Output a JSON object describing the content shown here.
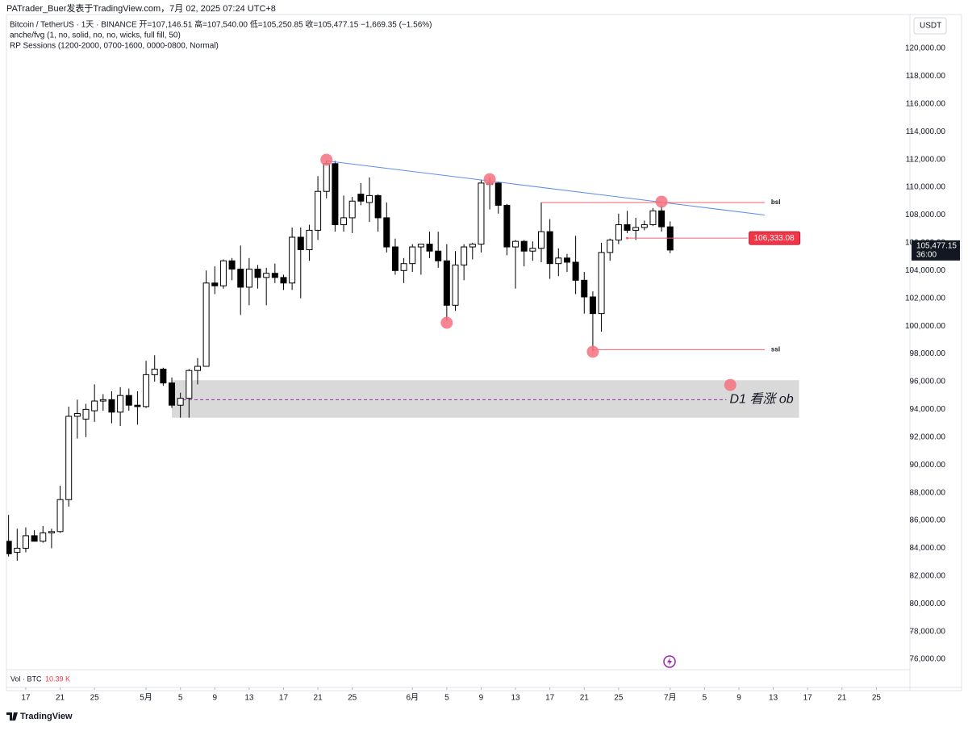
{
  "header": {
    "attribution": "PATrader_Buer发表于TradingView.com，7月 02, 2025 07:24 UTC+8",
    "symbol_line": "Bitcoin / TetherUS · 1天 · BINANCE  开=107,146.51 高=107,540.00 低=105,250.85 收=105,477.15 −1,669.35 (−1.56%)",
    "indicator_1": "anche/fvg (1, no, solid, no, no, wicks, full fill, 50)",
    "indicator_2": "RP Sessions (1200-2000, 0700-1600, 0000-0800, Normal)",
    "currency": "USDT",
    "volume_label": "Vol · BTC",
    "volume_value": "10.39 K",
    "brand": "TradingView"
  },
  "chart_data": {
    "type": "candlestick",
    "x": [
      "2025-04-15",
      "2025-04-16",
      "2025-04-17",
      "2025-04-18",
      "2025-04-19",
      "2025-04-20",
      "2025-04-21",
      "2025-04-22",
      "2025-04-23",
      "2025-04-24",
      "2025-04-25",
      "2025-04-26",
      "2025-04-27",
      "2025-04-28",
      "2025-04-29",
      "2025-04-30",
      "2025-05-01",
      "2025-05-02",
      "2025-05-03",
      "2025-05-04",
      "2025-05-05",
      "2025-05-06",
      "2025-05-07",
      "2025-05-08",
      "2025-05-09",
      "2025-05-10",
      "2025-05-11",
      "2025-05-12",
      "2025-05-13",
      "2025-05-14",
      "2025-05-15",
      "2025-05-16",
      "2025-05-17",
      "2025-05-18",
      "2025-05-19",
      "2025-05-20",
      "2025-05-21",
      "2025-05-22",
      "2025-05-23",
      "2025-05-24",
      "2025-05-25",
      "2025-05-26",
      "2025-05-27",
      "2025-05-28",
      "2025-05-29",
      "2025-05-30",
      "2025-05-31",
      "2025-06-01",
      "2025-06-02",
      "2025-06-03",
      "2025-06-04",
      "2025-06-05",
      "2025-06-06",
      "2025-06-07",
      "2025-06-08",
      "2025-06-09",
      "2025-06-10",
      "2025-06-11",
      "2025-06-12",
      "2025-06-13",
      "2025-06-14",
      "2025-06-15",
      "2025-06-16",
      "2025-06-17",
      "2025-06-18",
      "2025-06-19",
      "2025-06-20",
      "2025-06-21",
      "2025-06-22",
      "2025-06-23",
      "2025-06-24",
      "2025-06-25",
      "2025-06-26",
      "2025-06-27",
      "2025-06-28",
      "2025-06-29",
      "2025-06-30",
      "2025-07-01"
    ],
    "open": [
      84500,
      83700,
      84000,
      84900,
      84500,
      85100,
      85200,
      87500,
      93500,
      93300,
      93900,
      94600,
      94700,
      93800,
      95000,
      94300,
      94200,
      96500,
      96900,
      95900,
      94300,
      94800,
      96800,
      97100,
      103100,
      102900,
      104700,
      104100,
      102800,
      104100,
      103500,
      103800,
      103500,
      103100,
      106400,
      105500,
      106900,
      109700,
      111700,
      107300,
      107800,
      109500,
      108900,
      109400,
      107800,
      105700,
      104000,
      104500,
      105700,
      105900,
      105400,
      104700,
      101500,
      104400,
      105700,
      105900,
      110200,
      110300,
      108700,
      105700,
      106100,
      105400,
      105600,
      106800,
      104500,
      104900,
      104600,
      103300,
      102100,
      100900,
      105300,
      106200,
      107300,
      106900,
      107100,
      107300,
      108300,
      107146.51
    ],
    "high": [
      86400,
      85400,
      85500,
      85300,
      85600,
      85400,
      88500,
      94200,
      94700,
      94400,
      95800,
      95100,
      95300,
      95600,
      95500,
      95300,
      97500,
      97900,
      97000,
      96300,
      95200,
      96900,
      97700,
      104000,
      104300,
      104800,
      104900,
      105800,
      104900,
      104400,
      104200,
      104500,
      103700,
      107100,
      107100,
      107300,
      110800,
      111900,
      111900,
      109400,
      109300,
      110300,
      110700,
      109500,
      108900,
      106300,
      104900,
      105900,
      105900,
      106800,
      106800,
      105900,
      105400,
      105900,
      106000,
      110500,
      110700,
      110400,
      108800,
      106200,
      106200,
      106100,
      108900,
      107700,
      105600,
      105200,
      106500,
      103900,
      102500,
      106000,
      106300,
      108100,
      108300,
      107800,
      107600,
      108500,
      108700,
      107540
    ],
    "low": [
      83400,
      83100,
      83700,
      84600,
      84400,
      84000,
      85100,
      87000,
      91900,
      92000,
      93100,
      93900,
      93000,
      92800,
      93900,
      92900,
      94100,
      96000,
      95700,
      94100,
      93400,
      93400,
      95800,
      97100,
      102300,
      102700,
      103300,
      100800,
      101500,
      102700,
      101500,
      103100,
      102600,
      102600,
      102000,
      104700,
      106200,
      109200,
      106800,
      106800,
      106700,
      108700,
      107500,
      106800,
      105300,
      103700,
      103100,
      103900,
      103700,
      104900,
      104200,
      100400,
      101100,
      103300,
      104800,
      105300,
      108400,
      108100,
      105100,
      102700,
      104300,
      104700,
      104600,
      103400,
      103600,
      103900,
      102300,
      100900,
      98200,
      99600,
      104700,
      105900,
      106700,
      106200,
      106900,
      107200,
      106800,
      105250.85
    ],
    "close": [
      83600,
      84000,
      84900,
      84500,
      85100,
      85200,
      87500,
      93500,
      93700,
      94000,
      94600,
      94700,
      93800,
      95000,
      94300,
      94200,
      96500,
      96900,
      95900,
      94300,
      94800,
      96800,
      97100,
      103100,
      102900,
      104700,
      104100,
      102800,
      104100,
      103500,
      103800,
      103500,
      103100,
      106400,
      105500,
      106900,
      109700,
      111700,
      107300,
      107800,
      109000,
      109000,
      109400,
      107800,
      105700,
      104000,
      104500,
      105700,
      105900,
      105400,
      104700,
      101500,
      104400,
      105700,
      105900,
      110300,
      110300,
      108700,
      105700,
      106100,
      105400,
      105600,
      106800,
      104500,
      104900,
      104600,
      103300,
      102100,
      100900,
      105300,
      106200,
      107300,
      106900,
      107100,
      107300,
      108300,
      107150,
      105477.15
    ],
    "up_color": "#ffffff",
    "down_color": "#000000",
    "border_color": "#000000",
    "xlim": [
      "2025-04-14",
      "2025-07-29"
    ],
    "xticks": [
      {
        "value": "2025-04-17",
        "label": "17"
      },
      {
        "value": "2025-04-21",
        "label": "21"
      },
      {
        "value": "2025-04-25",
        "label": "25"
      },
      {
        "value": "2025-05-01",
        "label": "5月"
      },
      {
        "value": "2025-05-05",
        "label": "5"
      },
      {
        "value": "2025-05-09",
        "label": "9"
      },
      {
        "value": "2025-05-13",
        "label": "13"
      },
      {
        "value": "2025-05-17",
        "label": "17"
      },
      {
        "value": "2025-05-21",
        "label": "21"
      },
      {
        "value": "2025-05-25",
        "label": "25"
      },
      {
        "value": "2025-06-01",
        "label": "6月"
      },
      {
        "value": "2025-06-05",
        "label": "5"
      },
      {
        "value": "2025-06-09",
        "label": "9"
      },
      {
        "value": "2025-06-13",
        "label": "13"
      },
      {
        "value": "2025-06-17",
        "label": "17"
      },
      {
        "value": "2025-06-21",
        "label": "21"
      },
      {
        "value": "2025-06-25",
        "label": "25"
      },
      {
        "value": "2025-07-01",
        "label": "7月"
      },
      {
        "value": "2025-07-05",
        "label": "5"
      },
      {
        "value": "2025-07-09",
        "label": "9"
      },
      {
        "value": "2025-07-13",
        "label": "13"
      },
      {
        "value": "2025-07-17",
        "label": "17"
      },
      {
        "value": "2025-07-21",
        "label": "21"
      },
      {
        "value": "2025-07-25",
        "label": "25"
      }
    ],
    "ylim": [
      75250,
      122440
    ],
    "yticks": [
      {
        "value": 76000,
        "label": "76,000.00"
      },
      {
        "value": 78000,
        "label": "78,000.00"
      },
      {
        "value": 80000,
        "label": "80,000.00"
      },
      {
        "value": 82000,
        "label": "82,000.00"
      },
      {
        "value": 84000,
        "label": "84,000.00"
      },
      {
        "value": 86000,
        "label": "86,000.00"
      },
      {
        "value": 88000,
        "label": "88,000.00"
      },
      {
        "value": 90000,
        "label": "90,000.00"
      },
      {
        "value": 92000,
        "label": "92,000.00"
      },
      {
        "value": 94000,
        "label": "94,000.00"
      },
      {
        "value": 96000,
        "label": "96,000.00"
      },
      {
        "value": 98000,
        "label": "98,000.00"
      },
      {
        "value": 100000,
        "label": "100,000.00"
      },
      {
        "value": 102000,
        "label": "102,000.00"
      },
      {
        "value": 104000,
        "label": "104,000.00"
      },
      {
        "value": 106000,
        "label": "106,000.00"
      },
      {
        "value": 108000,
        "label": "108,000.00"
      },
      {
        "value": 110000,
        "label": "110,000.00"
      },
      {
        "value": 112000,
        "label": "112,000.00"
      },
      {
        "value": 114000,
        "label": "114,000.00"
      },
      {
        "value": 116000,
        "label": "116,000.00"
      },
      {
        "value": 118000,
        "label": "118,000.00"
      },
      {
        "value": 120000,
        "label": "120,000.00"
      }
    ],
    "grid": false,
    "last_price": {
      "value": 105477.15,
      "label": "105,477.15",
      "countdown": "36:00"
    },
    "zone": {
      "x": [
        "2025-05-04",
        "2025-07-16"
      ],
      "y": [
        93400,
        96100
      ],
      "mid": 94700,
      "label": "D1 看涨 ob",
      "color": "#d9d9d9",
      "mid_color": "#9c27b0"
    },
    "trendline": {
      "x": [
        "2025-05-22",
        "2025-07-12"
      ],
      "y": [
        111900,
        108000
      ],
      "color": "#5b8def"
    },
    "level_color": "#f0606f",
    "levels": [
      {
        "label": "bsl",
        "value": 108900,
        "x": [
          "2025-06-16",
          "2025-07-12"
        ]
      },
      {
        "label": "ssl",
        "value": 98300,
        "x": [
          "2025-06-22",
          "2025-07-12"
        ]
      },
      {
        "label": "106,333.08",
        "value": 106333.08,
        "x": [
          "2025-06-26",
          "2025-07-10"
        ]
      }
    ],
    "markers": {
      "x": [
        "2025-05-22",
        "2025-06-10",
        "2025-06-30",
        "2025-06-05",
        "2025-06-22",
        "2025-07-08"
      ],
      "y": [
        111980,
        110580,
        108960,
        100240,
        98150,
        95760
      ],
      "color": "#f4717f"
    }
  }
}
